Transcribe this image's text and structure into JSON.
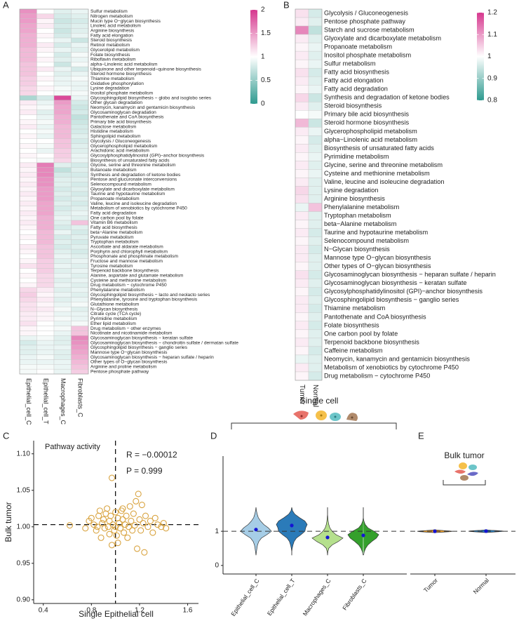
{
  "chart_data": [
    {
      "type": "heatmap",
      "panel": "A",
      "rows": [
        "Sulfur metabolism",
        "Nitrogen metabolism",
        "Mucin type O−glycan biosynthesis",
        "Linoleic acid metabolism",
        "Arginine biosynthesis",
        "Fatty acid elongation",
        "Steroid biosynthesis",
        "Retinol metabolism",
        "Glycerolipid metabolism",
        "Folate biosynthesis",
        "Riboflavin metabolism",
        "alpha−Linolenic acid metabolism",
        "Ubiquinone and other terpenoid−quinone biosynthesis",
        "Steroid hormone biosynthesis",
        "Thiamine metabolism",
        "Oxidative phosphorylation",
        "Lysine degradation",
        "Inositol phosphate metabolism",
        "Glycosphingolipid biosynthesis − globo and isoglobo series",
        "Other glycan degradation",
        "Neomycin, kanamycin and gentamicin biosynthesis",
        "Glycosaminoglycan degradation",
        "Pantothenate and CoA biosynthesis",
        "Primary bile acid biosynthesis",
        "Galactose metabolism",
        "Histidine metabolism",
        "Sphingolipid metabolism",
        "Glycolysis / Gluconeogenesis",
        "Glycerophospholipid metabolism",
        "Arachidonic acid metabolism",
        "Glycosylphosphatidylinositol (GPI)−anchor biosynthesis",
        "Biosynthesis of unsaturated fatty acids",
        "Glycine, serine and threonine metabolism",
        "Butanoate metabolism",
        "Synthesis and degradation of ketone bodies",
        "Pentose and glucuronate interconversions",
        "Selenocompound metabolism",
        "Glyoxylate and dicarboxylate metabolism",
        "Taurine and hypotaurine metabolism",
        "Propanoate metabolism",
        "Valine, leucine and isoleucine degradation",
        "Metabolism of xenobiotics by cytochrome P450",
        "Fatty acid degradation",
        "One carbon pool by folate",
        "Vitamin B6 metabolism",
        "Fatty acid biosynthesis",
        "beta−Alanine metabolism",
        "Pyruvate metabolism",
        "Tryptophan metabolism",
        "Ascorbate and aldarate metabolism",
        "Porphyrin and chlorophyll metabolism",
        "Phosphonate and phosphinate metabolism",
        "Fructose and mannose metabolism",
        "Tyrosine metabolism",
        "Terpenoid backbone biosynthesis",
        "Alanine, aspartate and glutamate metabolism",
        "Cysteine and methionine metabolism",
        "Drug metabolism − cytochrome P450",
        "Phenylalanine metabolism",
        "Glycosphingolipid biosynthesis − lacto and neolacto series",
        "Phenylalanine, tyrosine and tryptophan biosynthesis",
        "Glutathione metabolism",
        "N−Glycan biosynthesis",
        "Citrate cycle (TCA cycle)",
        "Pyrimidine metabolism",
        "Ether lipid metabolism",
        "Drug metabolism − other enzymes",
        "Nicotinate and nicotinamide metabolism",
        "Glycosaminoglycan biosynthesis − keratan sulfate",
        "Glycosaminoglycan biosynthesis − chondroitin sulfate / dermatan sulfate",
        "Glycosphingolipid biosynthesis − ganglio series",
        "Mannose type O−glycan biosynthesis",
        "Glycosaminoglycan biosynthesis − heparan sulfate / heparin",
        "Other types of O−glycan biosynthesis",
        "Arginine and proline metabolism",
        "Pentose phosphate pathway"
      ],
      "columns": [
        "Epithelial_cell_C",
        "Epithelial_cell_T",
        "Macrophages_C",
        "Fibroblasts_C"
      ],
      "values": [
        [
          1.55,
          1.0,
          0.85,
          0.9
        ],
        [
          1.5,
          1.2,
          0.8,
          0.85
        ],
        [
          1.5,
          1.05,
          0.75,
          0.8
        ],
        [
          1.45,
          1.1,
          0.8,
          0.85
        ],
        [
          1.45,
          1.0,
          0.75,
          0.85
        ],
        [
          1.4,
          1.05,
          0.8,
          0.9
        ],
        [
          1.4,
          1.0,
          0.9,
          0.75
        ],
        [
          1.4,
          1.1,
          0.8,
          0.9
        ],
        [
          1.35,
          1.05,
          0.9,
          0.85
        ],
        [
          1.35,
          1.0,
          0.8,
          0.95
        ],
        [
          1.35,
          1.05,
          0.85,
          0.9
        ],
        [
          1.3,
          1.0,
          0.75,
          0.95
        ],
        [
          1.3,
          1.1,
          0.9,
          0.8
        ],
        [
          1.3,
          1.0,
          0.85,
          0.9
        ],
        [
          1.25,
          1.05,
          0.9,
          0.95
        ],
        [
          1.25,
          1.0,
          0.9,
          0.9
        ],
        [
          1.2,
          1.05,
          0.95,
          0.9
        ],
        [
          1.2,
          1.0,
          0.95,
          0.95
        ],
        [
          0.6,
          0.8,
          1.9,
          0.9
        ],
        [
          1.1,
          0.9,
          1.5,
          0.8
        ],
        [
          1.05,
          0.95,
          1.45,
          0.75
        ],
        [
          1.1,
          0.85,
          1.45,
          0.8
        ],
        [
          1.0,
          0.9,
          1.4,
          0.7
        ],
        [
          1.05,
          0.95,
          1.4,
          0.75
        ],
        [
          1.1,
          0.9,
          1.35,
          0.8
        ],
        [
          1.0,
          0.95,
          1.35,
          0.8
        ],
        [
          1.05,
          0.9,
          1.35,
          0.85
        ],
        [
          1.0,
          1.0,
          1.3,
          0.8
        ],
        [
          1.05,
          0.95,
          1.3,
          0.85
        ],
        [
          1.0,
          0.9,
          1.25,
          0.85
        ],
        [
          1.05,
          1.0,
          1.25,
          0.9
        ],
        [
          1.0,
          0.95,
          1.2,
          0.9
        ],
        [
          1.1,
          1.65,
          0.85,
          0.8
        ],
        [
          1.05,
          1.6,
          0.7,
          0.85
        ],
        [
          1.1,
          1.6,
          0.8,
          0.8
        ],
        [
          1.05,
          1.55,
          0.85,
          0.85
        ],
        [
          1.1,
          1.55,
          0.85,
          0.8
        ],
        [
          1.05,
          1.5,
          0.8,
          0.85
        ],
        [
          1.1,
          1.5,
          0.85,
          0.8
        ],
        [
          1.05,
          1.5,
          0.8,
          0.85
        ],
        [
          1.1,
          1.45,
          0.85,
          0.8
        ],
        [
          1.05,
          1.45,
          0.8,
          0.85
        ],
        [
          1.1,
          1.45,
          0.85,
          0.9
        ],
        [
          1.05,
          1.4,
          0.9,
          0.85
        ],
        [
          1.1,
          1.4,
          0.85,
          1.3
        ],
        [
          1.05,
          1.4,
          0.8,
          0.85
        ],
        [
          1.0,
          1.35,
          0.9,
          0.8
        ],
        [
          1.05,
          1.35,
          0.8,
          0.85
        ],
        [
          1.0,
          1.35,
          0.85,
          0.8
        ],
        [
          1.1,
          1.3,
          0.8,
          0.85
        ],
        [
          1.05,
          1.3,
          0.85,
          0.8
        ],
        [
          1.0,
          1.3,
          0.9,
          0.85
        ],
        [
          1.05,
          1.25,
          0.85,
          0.9
        ],
        [
          1.15,
          1.25,
          0.9,
          0.85
        ],
        [
          1.0,
          1.25,
          0.85,
          0.9
        ],
        [
          1.05,
          1.2,
          0.9,
          0.85
        ],
        [
          1.0,
          1.2,
          0.85,
          0.9
        ],
        [
          1.05,
          1.2,
          0.9,
          0.85
        ],
        [
          1.2,
          1.1,
          0.85,
          0.9
        ],
        [
          1.25,
          1.05,
          0.9,
          0.85
        ],
        [
          1.2,
          1.1,
          0.85,
          0.9
        ],
        [
          1.15,
          1.05,
          0.9,
          0.95
        ],
        [
          1.15,
          1.1,
          0.95,
          0.85
        ],
        [
          1.1,
          1.05,
          0.9,
          0.9
        ],
        [
          1.1,
          1.05,
          0.95,
          0.9
        ],
        [
          1.15,
          1.0,
          0.9,
          0.95
        ],
        [
          1.05,
          1.0,
          0.95,
          1.3
        ],
        [
          1.05,
          1.0,
          0.9,
          1.3
        ],
        [
          0.9,
          0.95,
          0.85,
          1.6
        ],
        [
          0.8,
          0.9,
          0.85,
          1.55
        ],
        [
          0.85,
          0.9,
          0.9,
          1.5
        ],
        [
          0.85,
          0.9,
          0.85,
          1.45
        ],
        [
          0.9,
          0.95,
          0.85,
          1.4
        ],
        [
          0.9,
          0.9,
          0.9,
          1.35
        ],
        [
          0.95,
          0.95,
          0.9,
          1.3
        ],
        [
          0.95,
          1.0,
          0.9,
          1.25
        ]
      ],
      "colors": [
        "#2e9a8f",
        "#ffffff",
        "#d6378e"
      ],
      "zlim": [
        0,
        2
      ],
      "zticks": [
        0,
        0.5,
        1,
        1.5,
        2
      ]
    },
    {
      "type": "heatmap",
      "panel": "B",
      "rows": [
        "Glycolysis / Gluconeogenesis",
        "Pentose phosphate pathway",
        "Starch and sucrose metabolism",
        "Glyoxylate and dicarboxylate metabolism",
        "Propanoate metabolism",
        "Inositol phosphate metabolism",
        "Sulfur metabolism",
        "Fatty acid biosynthesis",
        "Fatty acid elongation",
        "Fatty acid degradation",
        "Synthesis and degradation of ketone bodies",
        "Steroid biosynthesis",
        "Primary bile acid biosynthesis",
        "Steroid hormone biosynthesis",
        "Glycerophospholipid metabolism",
        "alpha−Linolenic acid metabolism",
        "Biosynthesis of unsaturated fatty acids",
        "Pyrimidine metabolism",
        "Glycine, serine and threonine metabolism",
        "Cysteine and methionine metabolism",
        "Valine, leucine and isoleucine degradation",
        "Lysine degradation",
        "Arginine biosynthesis",
        "Phenylalanine metabolism",
        "Tryptophan metabolism",
        "beta−Alanine metabolism",
        "Taurine and hypotaurine metabolism",
        "Selenocompound metabolism",
        "N−Glycan biosynthesis",
        "Mannose type O−glycan biosynthesis",
        "Other types of O−glycan biosynthesis",
        "Glycosaminoglycan biosynthesis − heparan sulfate / heparin",
        "Glycosaminoglycan biosynthesis − keratan sulfate",
        "Glycosylphosphatidylinositol (GPI)−anchor biosynthesis",
        "Glycosphingolipid biosynthesis − ganglio series",
        "Thiamine metabolism",
        "Pantothenate and CoA biosynthesis",
        "Folate biosynthesis",
        "One carbon pool by folate",
        "Terpenoid backbone biosynthesis",
        "Caffeine metabolism",
        "Neomycin, kanamycin and gentamicin biosynthesis",
        "Metabolism of xenobiotics by cytochrome P450",
        "Drug metabolism − cytochrome P450"
      ],
      "columns": [
        "Tumor",
        "Normal"
      ],
      "values": [
        [
          1.03,
          0.96
        ],
        [
          1.02,
          0.97
        ],
        [
          1.12,
          0.94
        ],
        [
          1.02,
          0.97
        ],
        [
          1.01,
          0.98
        ],
        [
          1.02,
          0.97
        ],
        [
          1.01,
          0.98
        ],
        [
          1.03,
          0.96
        ],
        [
          1.02,
          0.97
        ],
        [
          1.01,
          0.98
        ],
        [
          1.04,
          0.95
        ],
        [
          1.02,
          0.97
        ],
        [
          1.0,
          0.99
        ],
        [
          1.07,
          0.95
        ],
        [
          1.02,
          0.98
        ],
        [
          1.01,
          0.96
        ],
        [
          1.02,
          0.97
        ],
        [
          1.01,
          0.98
        ],
        [
          1.02,
          0.97
        ],
        [
          1.01,
          0.98
        ],
        [
          1.02,
          0.97
        ],
        [
          1.04,
          0.97
        ],
        [
          1.03,
          0.97
        ],
        [
          0.98,
          1.06
        ],
        [
          1.02,
          0.97
        ],
        [
          1.01,
          0.97
        ],
        [
          1.02,
          0.96
        ],
        [
          1.01,
          0.97
        ],
        [
          1.02,
          0.96
        ],
        [
          1.02,
          0.97
        ],
        [
          1.01,
          0.97
        ],
        [
          1.03,
          0.96
        ],
        [
          1.02,
          0.97
        ],
        [
          1.01,
          0.96
        ],
        [
          1.02,
          0.97
        ],
        [
          1.02,
          0.96
        ],
        [
          1.01,
          0.97
        ],
        [
          1.02,
          0.96
        ],
        [
          1.01,
          0.97
        ],
        [
          1.02,
          0.97
        ],
        [
          1.01,
          0.96
        ],
        [
          0.98,
          0.97
        ],
        [
          1.02,
          0.97
        ],
        [
          1.01,
          0.96
        ]
      ],
      "colors": [
        "#2e9a8f",
        "#ffffff",
        "#d6378e"
      ],
      "zlim": [
        0.8,
        1.2
      ],
      "zticks": [
        0.8,
        0.9,
        1,
        1.1,
        1.2
      ]
    },
    {
      "type": "scatter",
      "panel": "C",
      "title": "Pathway activity",
      "annotations": [
        "R = −0.00012",
        "P = 0.999"
      ],
      "xlabel": "Single Epithelial cell",
      "ylabel": "Bulk tumor",
      "color": "#d9a441",
      "x": [
        0.62,
        0.75,
        0.78,
        0.8,
        0.82,
        0.84,
        0.86,
        0.87,
        0.88,
        0.89,
        0.9,
        0.91,
        0.92,
        0.93,
        0.94,
        0.95,
        0.95,
        0.96,
        0.97,
        0.97,
        0.98,
        0.99,
        1.0,
        1.0,
        1.01,
        1.02,
        1.03,
        1.04,
        1.05,
        1.06,
        1.07,
        1.08,
        1.09,
        1.1,
        1.11,
        1.12,
        1.13,
        1.14,
        1.15,
        1.16,
        1.17,
        1.18,
        1.19,
        1.2,
        1.21,
        1.22,
        1.23,
        1.24,
        1.25,
        1.27,
        1.29,
        1.31,
        1.33,
        1.35,
        1.38,
        1.4,
        1.42,
        0.85,
        1.02,
        1.06
      ],
      "y": [
        1.002,
        0.998,
        1.008,
        1.012,
        1.003,
        0.995,
        1.015,
        1.022,
        0.985,
        1.005,
        1.01,
        0.998,
        1.018,
        1.025,
        1.0,
        0.99,
        1.008,
        1.015,
        1.067,
        0.975,
        1.003,
        0.995,
        1.02,
        1.0,
        0.988,
        1.012,
        1.005,
        0.998,
        1.022,
        1.01,
        0.992,
        1.003,
        1.015,
        0.985,
        1.0,
        1.028,
        1.008,
        0.995,
        1.018,
        1.002,
        1.035,
        0.97,
        1.045,
        1.01,
        0.995,
        1.03,
        1.005,
        0.965,
        1.015,
        1.0,
        1.008,
        0.992,
        1.012,
        1.003,
        1.0,
        1.005,
        0.998,
        1.0,
        0.978,
        1.025
      ],
      "xlim": [
        0.32,
        1.69
      ],
      "xticks": [
        0.4,
        0.8,
        1.2,
        1.6
      ],
      "ylim": [
        0.895,
        1.118
      ],
      "yticks": [
        {
          "value": 0.9,
          "label": "0.90"
        },
        0.95,
        {
          "value": 1,
          "label": "1.00"
        },
        1.05,
        {
          "value": 1.1,
          "label": "1.10"
        }
      ],
      "vline": 1,
      "hline": 1.003
    },
    {
      "type": "violin",
      "panel": "D",
      "title": "Single cell",
      "categories": [
        "Epithelial_cell_C",
        "Epithelial_cell_T",
        "Macrophages_C",
        "Fibroblasts_C"
      ],
      "colors": [
        "#a6cde6",
        "#2b7bb9",
        "#b5e08d",
        "#34a02c"
      ],
      "density_grid": [
        0.3,
        0.4,
        0.5,
        0.6,
        0.7,
        0.8,
        0.9,
        1.0,
        1.1,
        1.2,
        1.3,
        1.4,
        1.5,
        1.6,
        1.7
      ],
      "densities": [
        [
          0,
          0.03,
          0.06,
          0.1,
          0.18,
          0.35,
          0.7,
          1.0,
          0.8,
          0.5,
          0.3,
          0.15,
          0.08,
          0.03,
          0
        ],
        [
          0,
          0,
          0.03,
          0.08,
          0.15,
          0.3,
          0.6,
          0.85,
          0.9,
          1.0,
          0.85,
          0.5,
          0.2,
          0.05,
          0
        ],
        [
          0,
          0.02,
          0.08,
          0.3,
          0.7,
          1.0,
          0.55,
          0.3,
          0.15,
          0.08,
          0.04,
          0.02,
          0,
          0,
          0
        ],
        [
          0.02,
          0.06,
          0.15,
          0.3,
          0.55,
          0.85,
          1.0,
          0.7,
          0.3,
          0.12,
          0.04,
          0,
          0,
          0,
          0
        ]
      ],
      "means": [
        1.05,
        1.17,
        0.82,
        0.88
      ],
      "mean_color": "#1414d4",
      "ylim": [
        -0.25,
        3.2
      ],
      "yticks": [
        0,
        1
      ],
      "hline": 1
    },
    {
      "type": "violin",
      "panel": "E",
      "title": "Bulk tumor",
      "categories": [
        "Tumor",
        "Normal"
      ],
      "colors": [
        "#f0a22e",
        "#2b7bb9"
      ],
      "density_grid": [
        0.96,
        0.97,
        0.98,
        0.99,
        1.0,
        1.01,
        1.02,
        1.03,
        1.04,
        1.05
      ],
      "densities": [
        [
          0,
          0.3,
          0.6,
          0.9,
          1.0,
          0.8,
          0.5,
          0.3,
          0.1,
          0
        ],
        [
          0,
          0.2,
          0.5,
          0.8,
          1.0,
          0.9,
          0.6,
          0.3,
          0.1,
          0
        ]
      ],
      "means": [
        1.0,
        1.005
      ],
      "mean_color": "#1414d4",
      "ylim": [
        -0.25,
        3.2
      ],
      "hline": 1
    }
  ]
}
